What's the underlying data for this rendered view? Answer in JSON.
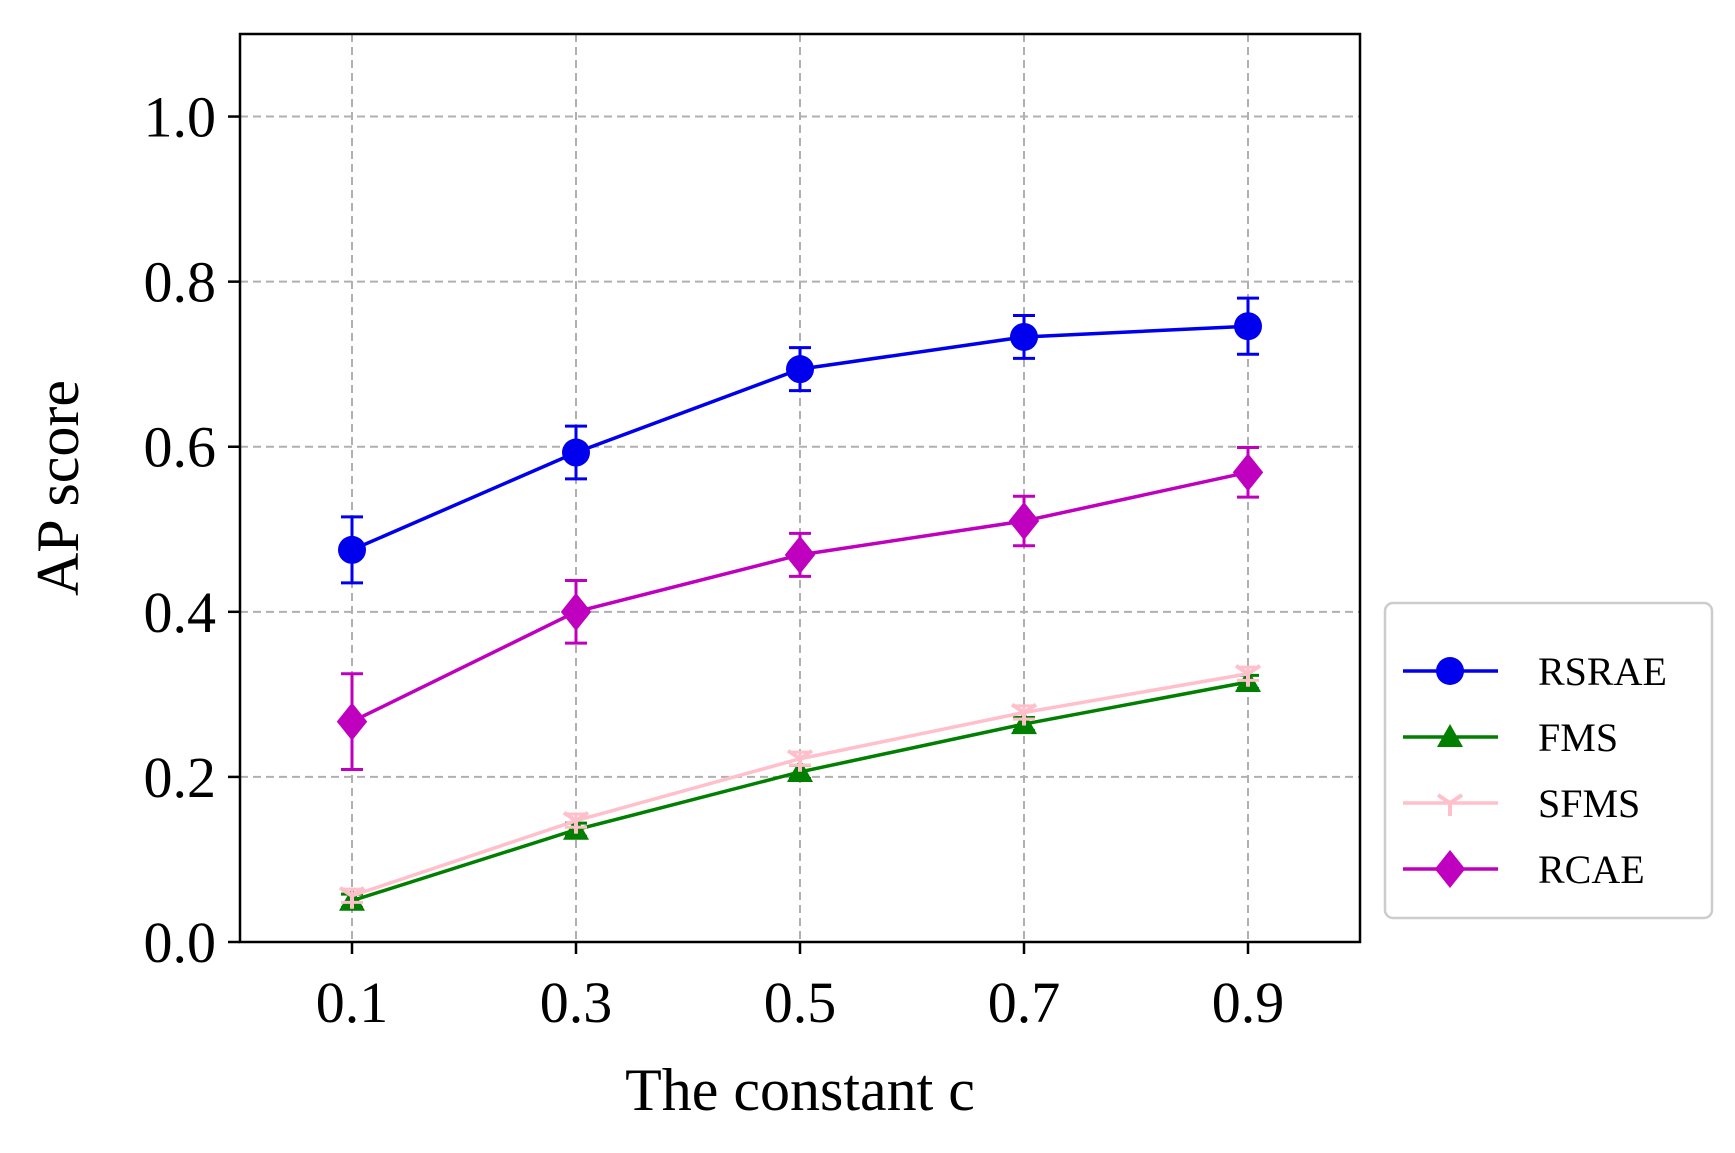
{
  "chart_data": {
    "type": "line",
    "title": "",
    "xlabel": "The constant c",
    "ylabel": "AP score",
    "x": [
      0.1,
      0.3,
      0.5,
      0.7,
      0.9
    ],
    "x_tick_labels": [
      "0.1",
      "0.3",
      "0.5",
      "0.7",
      "0.9"
    ],
    "xlim": [
      0.0,
      1.0
    ],
    "ylim": [
      0.0,
      1.1
    ],
    "y_ticks": [
      0.0,
      0.2,
      0.4,
      0.6,
      0.8,
      1.0
    ],
    "y_tick_labels": [
      "0.0",
      "0.2",
      "0.4",
      "0.6",
      "0.8",
      "1.0"
    ],
    "grid": true,
    "legend_position": "outside-right-lower",
    "series": [
      {
        "name": "RSRAE",
        "color": "#0000ee",
        "marker": "circle",
        "values": [
          0.475,
          0.593,
          0.694,
          0.733,
          0.746
        ],
        "errors": [
          0.04,
          0.032,
          0.026,
          0.026,
          0.034
        ]
      },
      {
        "name": "FMS",
        "color": "#007f00",
        "marker": "triangle",
        "values": [
          0.05,
          0.136,
          0.206,
          0.264,
          0.315
        ],
        "errors": [
          0.008,
          0.008,
          0.008,
          0.008,
          0.008
        ]
      },
      {
        "name": "SFMS",
        "color": "#ffc0cb",
        "marker": "tri-down",
        "values": [
          0.056,
          0.147,
          0.222,
          0.278,
          0.325
        ],
        "errors": [
          0.008,
          0.008,
          0.008,
          0.008,
          0.008
        ]
      },
      {
        "name": "RCAE",
        "color": "#bf00bf",
        "marker": "diamond",
        "values": [
          0.267,
          0.4,
          0.469,
          0.51,
          0.569
        ],
        "errors": [
          0.058,
          0.038,
          0.026,
          0.03,
          0.03
        ]
      }
    ]
  }
}
